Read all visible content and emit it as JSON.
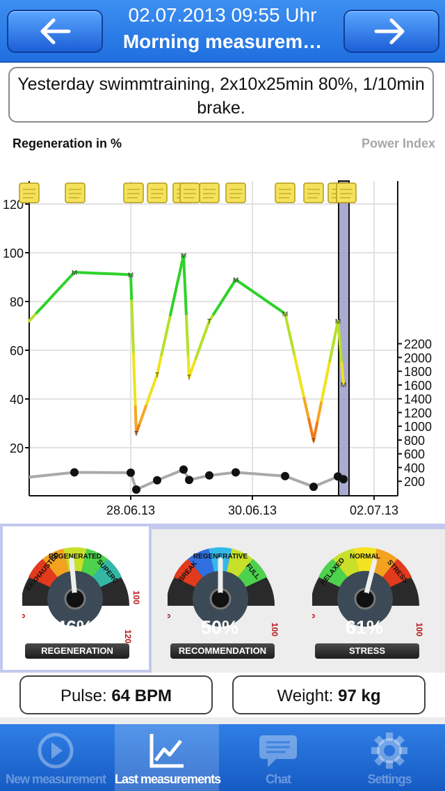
{
  "header": {
    "date": "02.07.2013 09:55 Uhr",
    "title": "Morning measurem…"
  },
  "note": {
    "text": "Yesterday swimmtraining, 2x10x25min 80%, 1/10min brake."
  },
  "chart_labels": {
    "left": "Regeneration in %",
    "right": "Power Index"
  },
  "chart_data": {
    "type": "line",
    "x_ticks": [
      "28.06.13",
      "30.06.13",
      "02.07.13"
    ],
    "y_left": {
      "ticks": [
        20,
        40,
        60,
        80,
        100,
        120
      ]
    },
    "y_right": {
      "ticks": [
        200,
        400,
        600,
        800,
        1000,
        1200,
        1400,
        1600,
        1800,
        2000,
        2200
      ]
    },
    "series": [
      {
        "axis": "left",
        "points": [
          {
            "y": 72,
            "tag": ""
          },
          {
            "y": 92,
            "tag": "M"
          },
          {
            "y": 91,
            "tag": "M"
          },
          {
            "y": 26,
            "tag": "T"
          },
          {
            "y": 50,
            "tag": "T"
          },
          {
            "y": 99,
            "tag": "M"
          },
          {
            "y": 49,
            "tag": "T"
          },
          {
            "y": 72,
            "tag": "T"
          },
          {
            "y": 89,
            "tag": "M"
          },
          {
            "y": 75,
            "tag": "M"
          },
          {
            "y": 23,
            "tag": "T"
          },
          {
            "y": 72,
            "tag": "M"
          },
          {
            "y": 46,
            "tag": "M"
          }
        ]
      },
      {
        "axis": "right",
        "values": [
          260,
          330,
          325,
          80,
          215,
          370,
          220,
          285,
          330,
          275,
          120,
          270,
          230
        ]
      }
    ],
    "note_markers": 11
  },
  "gauges": [
    {
      "name": "REGENERATION",
      "value": 46,
      "percent_label": "46%",
      "arc_labels": [
        "EEXHAUSTED",
        "REGENERATED",
        "SUPERC"
      ],
      "scale": [
        "0",
        "100",
        "120"
      ],
      "selected": true
    },
    {
      "name": "RECOMMENDATION",
      "value": 50,
      "percent_label": "50%",
      "arc_labels": [
        "BREAK",
        "REGENERATIVE",
        "FULL"
      ],
      "scale": [
        "0",
        "100"
      ],
      "selected": false
    },
    {
      "name": "STRESS",
      "value": 61,
      "percent_label": "61%",
      "arc_labels": [
        "RELAXED",
        "NORMAL",
        "STRESS"
      ],
      "scale": [
        "0",
        "100"
      ],
      "selected": false
    }
  ],
  "info": {
    "pulse_label": "Pulse:",
    "pulse_value": "64 BPM",
    "weight_label": "Weight:",
    "weight_value": "97 kg"
  },
  "tabs": [
    {
      "label": "New measurement",
      "icon": "play-icon",
      "active": false
    },
    {
      "label": "Last measurements",
      "icon": "chart-icon",
      "active": true
    },
    {
      "label": "Chat",
      "icon": "chat-icon",
      "active": false
    },
    {
      "label": "Settings",
      "icon": "gear-icon",
      "active": false
    }
  ]
}
